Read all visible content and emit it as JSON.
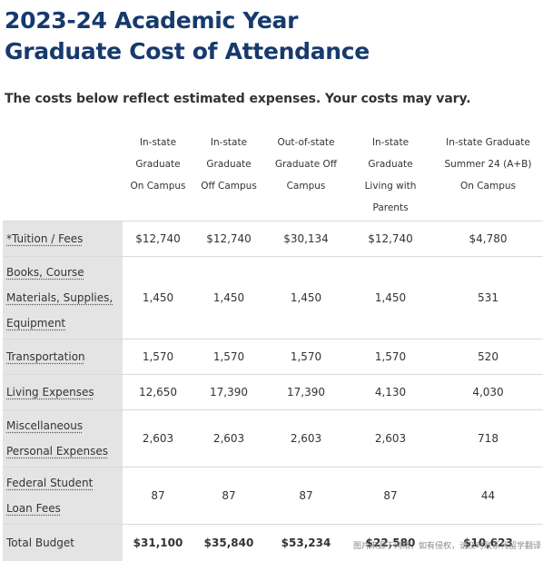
{
  "title": {
    "line1": "2023-24 Academic Year",
    "line2": "Graduate Cost of Attendance"
  },
  "subtitle": "The costs below reflect estimated expenses.  Your costs may vary.",
  "table": {
    "headers": [
      [
        "In-state",
        "Graduate",
        "On Campus"
      ],
      [
        "In-state",
        "Graduate",
        "Off Campus"
      ],
      [
        "Out-of-state",
        "Graduate Off",
        "Campus"
      ],
      [
        "In-state",
        "Graduate",
        "Living with",
        "Parents"
      ],
      [
        "In-state Graduate",
        "Summer 24 (A+B)",
        "On Campus"
      ]
    ],
    "rows": [
      {
        "label": [
          "*Tuition / Fees"
        ],
        "values": [
          "$12,740",
          "$12,740",
          "$30,134",
          "$12,740",
          "$4,780"
        ]
      },
      {
        "label": [
          "Books, Course",
          "Materials, Supplies,",
          "Equipment"
        ],
        "values": [
          "1,450",
          "1,450",
          "1,450",
          "1,450",
          "531"
        ]
      },
      {
        "label": [
          "Transportation"
        ],
        "values": [
          "1,570",
          "1,570",
          "1,570",
          "1,570",
          "520"
        ]
      },
      {
        "label": [
          "Living Expenses"
        ],
        "values": [
          "12,650",
          "17,390",
          "17,390",
          "4,130",
          "4,030"
        ]
      },
      {
        "label": [
          "Miscellaneous",
          "Personal Expenses"
        ],
        "values": [
          "2,603",
          "2,603",
          "2,603",
          "2,603",
          "718"
        ]
      },
      {
        "label": [
          "Federal Student",
          "Loan Fees"
        ],
        "values": [
          "87",
          "87",
          "87",
          "87",
          "44"
        ]
      },
      {
        "label": [
          "Total Budget"
        ],
        "values": [
          "$31,100",
          "$35,840",
          "$53,234",
          "$22,580",
          "$10,623"
        ]
      }
    ]
  },
  "watermark": "图片来源于网络，如有侵权，请及时联系代留学翻译"
}
